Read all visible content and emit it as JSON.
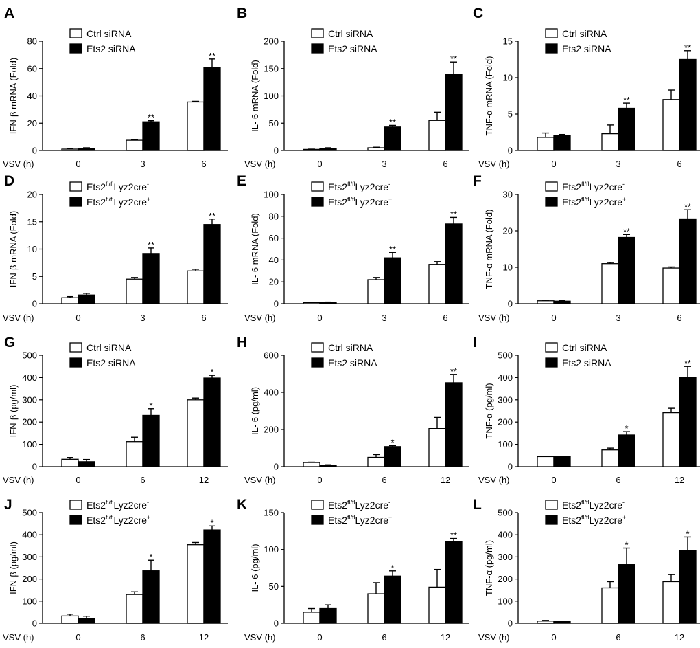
{
  "figure": {
    "colors": {
      "control_fill": "#ffffff",
      "treatment_fill": "#000000",
      "stroke": "#000000"
    }
  },
  "chart_data": [
    {
      "type": "bar",
      "panel": "A",
      "title": "",
      "ylabel": "IFN-β mRNA (Fold)",
      "xlabel": "VSV (h)",
      "categories": [
        "0",
        "3",
        "6"
      ],
      "ylim": [
        0,
        80
      ],
      "yticks": [
        0,
        20,
        40,
        60,
        80
      ],
      "legend": "top-left",
      "series": [
        {
          "name": "Ctrl siRNA",
          "legend_base": "Ctrl siRNA",
          "legend_sup": "",
          "legend_sup2": "",
          "fill": "white",
          "values": [
            1,
            7.5,
            35.5
          ],
          "errors": [
            0.5,
            0.5,
            0.5
          ]
        },
        {
          "name": "Ets2 siRNA",
          "legend_base": "Ets2 siRNA",
          "legend_sup": "",
          "legend_sup2": "",
          "fill": "black",
          "values": [
            1.5,
            21,
            61
          ],
          "errors": [
            0.5,
            0.8,
            6
          ]
        }
      ],
      "significance": [
        "",
        "**",
        "**"
      ]
    },
    {
      "type": "bar",
      "panel": "B",
      "title": "",
      "ylabel": "IL- 6 mRNA (Fold)",
      "xlabel": "VSV (h)",
      "categories": [
        "0",
        "3",
        "6"
      ],
      "ylim": [
        0,
        200
      ],
      "yticks": [
        0,
        50,
        100,
        150,
        200
      ],
      "legend": "top-left",
      "series": [
        {
          "name": "Ctrl siRNA",
          "legend_base": "Ctrl siRNA",
          "legend_sup": "",
          "legend_sup2": "",
          "fill": "white",
          "values": [
            2,
            5,
            55
          ],
          "errors": [
            0.5,
            1,
            15
          ]
        },
        {
          "name": "Ets2 siRNA",
          "legend_base": "Ets2 siRNA",
          "legend_sup": "",
          "legend_sup2": "",
          "fill": "black",
          "values": [
            4,
            43,
            140
          ],
          "errors": [
            1,
            3,
            22
          ]
        }
      ],
      "significance": [
        "",
        "**",
        "**"
      ]
    },
    {
      "type": "bar",
      "panel": "C",
      "title": "",
      "ylabel": "TNF-α mRNA (Fold)",
      "xlabel": "VSV (h)",
      "categories": [
        "0",
        "3",
        "6"
      ],
      "ylim": [
        0,
        15
      ],
      "yticks": [
        0,
        5,
        10,
        15
      ],
      "legend": "top-left",
      "series": [
        {
          "name": "Ctrl siRNA",
          "legend_base": "Ctrl siRNA",
          "legend_sup": "",
          "legend_sup2": "",
          "fill": "white",
          "values": [
            1.8,
            2.3,
            7
          ],
          "errors": [
            0.6,
            1.2,
            1.3
          ]
        },
        {
          "name": "Ets2 siRNA",
          "legend_base": "Ets2 siRNA",
          "legend_sup": "",
          "legend_sup2": "",
          "fill": "black",
          "values": [
            2.1,
            5.8,
            12.5
          ],
          "errors": [
            0.1,
            0.7,
            1.2
          ]
        }
      ],
      "significance": [
        "",
        "**",
        "**"
      ]
    },
    {
      "type": "bar",
      "panel": "D",
      "title": "",
      "ylabel": "IFN-β mRNA (Fold)",
      "xlabel": "VSV (h)",
      "categories": [
        "0",
        "3",
        "6"
      ],
      "ylim": [
        0,
        20
      ],
      "yticks": [
        0,
        5,
        10,
        15,
        20
      ],
      "legend": "top-left",
      "series": [
        {
          "name": "Ets2fl/flLyz2cre-",
          "legend_base": "Ets2",
          "legend_sup": "fl/fl",
          "legend_mid": "Lyz2cre",
          "legend_sup2": "-",
          "fill": "white",
          "values": [
            1.1,
            4.5,
            6
          ],
          "errors": [
            0.2,
            0.3,
            0.3
          ]
        },
        {
          "name": "Ets2fl/flLyz2cre+",
          "legend_base": "Ets2",
          "legend_sup": "fl/fl",
          "legend_mid": "Lyz2cre",
          "legend_sup2": "+",
          "fill": "black",
          "values": [
            1.6,
            9.2,
            14.5
          ],
          "errors": [
            0.3,
            1,
            1
          ]
        }
      ],
      "significance": [
        "",
        "**",
        "**"
      ]
    },
    {
      "type": "bar",
      "panel": "E",
      "title": "",
      "ylabel": "IL- 6 mRNA (Fold)",
      "xlabel": "VSV (h)",
      "categories": [
        "0",
        "3",
        "6"
      ],
      "ylim": [
        0,
        100
      ],
      "yticks": [
        0,
        20,
        40,
        60,
        80,
        100
      ],
      "legend": "top-left",
      "series": [
        {
          "name": "Ets2fl/flLyz2cre-",
          "legend_base": "Ets2",
          "legend_sup": "fl/fl",
          "legend_mid": "Lyz2cre",
          "legend_sup2": "-",
          "fill": "white",
          "values": [
            1,
            22,
            36
          ],
          "errors": [
            0.3,
            2,
            2.5
          ]
        },
        {
          "name": "Ets2fl/flLyz2cre+",
          "legend_base": "Ets2",
          "legend_sup": "fl/fl",
          "legend_mid": "Lyz2cre",
          "legend_sup2": "+",
          "fill": "black",
          "values": [
            1.2,
            42,
            73
          ],
          "errors": [
            0.3,
            5,
            6
          ]
        }
      ],
      "significance": [
        "",
        "**",
        "**"
      ]
    },
    {
      "type": "bar",
      "panel": "F",
      "title": "",
      "ylabel": "TNF-α mRNA (Fold)",
      "xlabel": "VSV (h)",
      "categories": [
        "0",
        "3",
        "6"
      ],
      "ylim": [
        0,
        30
      ],
      "yticks": [
        0,
        10,
        20,
        30
      ],
      "legend": "top-left",
      "series": [
        {
          "name": "Ets2fl/flLyz2cre-",
          "legend_base": "Ets2",
          "legend_sup": "fl/fl",
          "legend_mid": "Lyz2cre",
          "legend_sup2": "-",
          "fill": "white",
          "values": [
            0.8,
            11,
            9.8
          ],
          "errors": [
            0.2,
            0.3,
            0.3
          ]
        },
        {
          "name": "Ets2fl/flLyz2cre+",
          "legend_base": "Ets2",
          "legend_sup": "fl/fl",
          "legend_mid": "Lyz2cre",
          "legend_sup2": "+",
          "fill": "black",
          "values": [
            0.7,
            18.2,
            23.3
          ],
          "errors": [
            0.2,
            0.8,
            2.5
          ]
        }
      ],
      "significance": [
        "",
        "**",
        "**"
      ]
    },
    {
      "type": "bar",
      "panel": "G",
      "title": "",
      "ylabel": "IFN-β (pg/ml)",
      "xlabel": "VSV (h)",
      "categories": [
        "0",
        "6",
        "12"
      ],
      "ylim": [
        0,
        500
      ],
      "yticks": [
        0,
        100,
        200,
        300,
        400,
        500
      ],
      "legend": "top-left",
      "series": [
        {
          "name": "Ctrl siRNA",
          "legend_base": "Ctrl siRNA",
          "legend_sup": "",
          "legend_sup2": "",
          "fill": "white",
          "values": [
            33,
            112,
            300
          ],
          "errors": [
            8,
            20,
            8
          ]
        },
        {
          "name": "Ets2 siRNA",
          "legend_base": "Ets2 siRNA",
          "legend_sup": "",
          "legend_sup2": "",
          "fill": "black",
          "values": [
            22,
            230,
            398
          ],
          "errors": [
            10,
            30,
            12
          ]
        }
      ],
      "significance": [
        "",
        "*",
        "*"
      ]
    },
    {
      "type": "bar",
      "panel": "H",
      "title": "",
      "ylabel": "IL- 6 (pg/ml)",
      "xlabel": "VSV (h)",
      "categories": [
        "0",
        "6",
        "12"
      ],
      "ylim": [
        0,
        600
      ],
      "yticks": [
        0,
        200,
        400,
        600
      ],
      "legend": "top-left",
      "series": [
        {
          "name": "Ctrl siRNA",
          "legend_base": "Ctrl siRNA",
          "legend_sup": "",
          "legend_sup2": "",
          "fill": "white",
          "values": [
            22,
            50,
            205
          ],
          "errors": [
            2,
            15,
            60
          ]
        },
        {
          "name": "Ets2 siRNA",
          "legend_base": "Ets2 siRNA",
          "legend_sup": "",
          "legend_sup2": "",
          "fill": "black",
          "values": [
            8,
            108,
            452
          ],
          "errors": [
            2,
            5,
            45
          ]
        }
      ],
      "significance": [
        "",
        "*",
        "**"
      ]
    },
    {
      "type": "bar",
      "panel": "I",
      "title": "",
      "ylabel": "TNF-α (pg/ml)",
      "xlabel": "VSV (h)",
      "categories": [
        "0",
        "6",
        "12"
      ],
      "ylim": [
        0,
        500
      ],
      "yticks": [
        0,
        100,
        200,
        300,
        400,
        500
      ],
      "legend": "top-left",
      "series": [
        {
          "name": "Ctrl siRNA",
          "legend_base": "Ctrl siRNA",
          "legend_sup": "",
          "legend_sup2": "",
          "fill": "white",
          "values": [
            45,
            75,
            242
          ],
          "errors": [
            2,
            8,
            20
          ]
        },
        {
          "name": "Ets2 siRNA",
          "legend_base": "Ets2 siRNA",
          "legend_sup": "",
          "legend_sup2": "",
          "fill": "black",
          "values": [
            45,
            142,
            402
          ],
          "errors": [
            2,
            15,
            48
          ]
        }
      ],
      "significance": [
        "",
        "*",
        "**"
      ]
    },
    {
      "type": "bar",
      "panel": "J",
      "title": "",
      "ylabel": "IFN-β (pg/ml)",
      "xlabel": "VSV (h)",
      "categories": [
        "0",
        "6",
        "12"
      ],
      "ylim": [
        0,
        500
      ],
      "yticks": [
        0,
        100,
        200,
        300,
        400,
        500
      ],
      "legend": "top-left",
      "series": [
        {
          "name": "Ets2fl/flLyz2cre-",
          "legend_base": "Ets2",
          "legend_sup": "fl/fl",
          "legend_mid": "Lyz2cre",
          "legend_sup2": "-",
          "fill": "white",
          "values": [
            33,
            130,
            355
          ],
          "errors": [
            8,
            12,
            10
          ]
        },
        {
          "name": "Ets2fl/flLyz2cre+",
          "legend_base": "Ets2",
          "legend_sup": "fl/fl",
          "legend_mid": "Lyz2cre",
          "legend_sup2": "+",
          "fill": "black",
          "values": [
            22,
            237,
            422
          ],
          "errors": [
            10,
            48,
            18
          ]
        }
      ],
      "significance": [
        "",
        "*",
        "*"
      ]
    },
    {
      "type": "bar",
      "panel": "K",
      "title": "",
      "ylabel": "IL- 6 (pg/ml)",
      "xlabel": "VSV (h)",
      "categories": [
        "0",
        "6",
        "12"
      ],
      "ylim": [
        0,
        150
      ],
      "yticks": [
        0,
        50,
        100,
        150
      ],
      "legend": "top-left",
      "series": [
        {
          "name": "Ets2fl/flLyz2cre-",
          "legend_base": "Ets2",
          "legend_sup": "fl/fl",
          "legend_mid": "Lyz2cre",
          "legend_sup2": "-",
          "fill": "white",
          "values": [
            15,
            40,
            49
          ],
          "errors": [
            5,
            15,
            24
          ]
        },
        {
          "name": "Ets2fl/flLyz2cre+",
          "legend_base": "Ets2",
          "legend_sup": "fl/fl",
          "legend_mid": "Lyz2cre",
          "legend_sup2": "+",
          "fill": "black",
          "values": [
            20,
            64,
            111
          ],
          "errors": [
            5,
            7,
            4
          ]
        }
      ],
      "significance": [
        "",
        "*",
        "**"
      ]
    },
    {
      "type": "bar",
      "panel": "L",
      "title": "",
      "ylabel": "TNF-α (pg/ml)",
      "xlabel": "VSV (h)",
      "categories": [
        "0",
        "6",
        "12"
      ],
      "ylim": [
        0,
        500
      ],
      "yticks": [
        0,
        100,
        200,
        300,
        400,
        500
      ],
      "legend": "top-left",
      "series": [
        {
          "name": "Ets2fl/flLyz2cre-",
          "legend_base": "Ets2",
          "legend_sup": "fl/fl",
          "legend_mid": "Lyz2cre",
          "legend_sup2": "-",
          "fill": "white",
          "values": [
            10,
            160,
            188
          ],
          "errors": [
            3,
            28,
            32
          ]
        },
        {
          "name": "Ets2fl/flLyz2cre+",
          "legend_base": "Ets2",
          "legend_sup": "fl/fl",
          "legend_mid": "Lyz2cre",
          "legend_sup2": "+",
          "fill": "black",
          "values": [
            8,
            265,
            330
          ],
          "errors": [
            2,
            75,
            60
          ]
        }
      ],
      "significance": [
        "",
        "*",
        "*"
      ]
    }
  ]
}
